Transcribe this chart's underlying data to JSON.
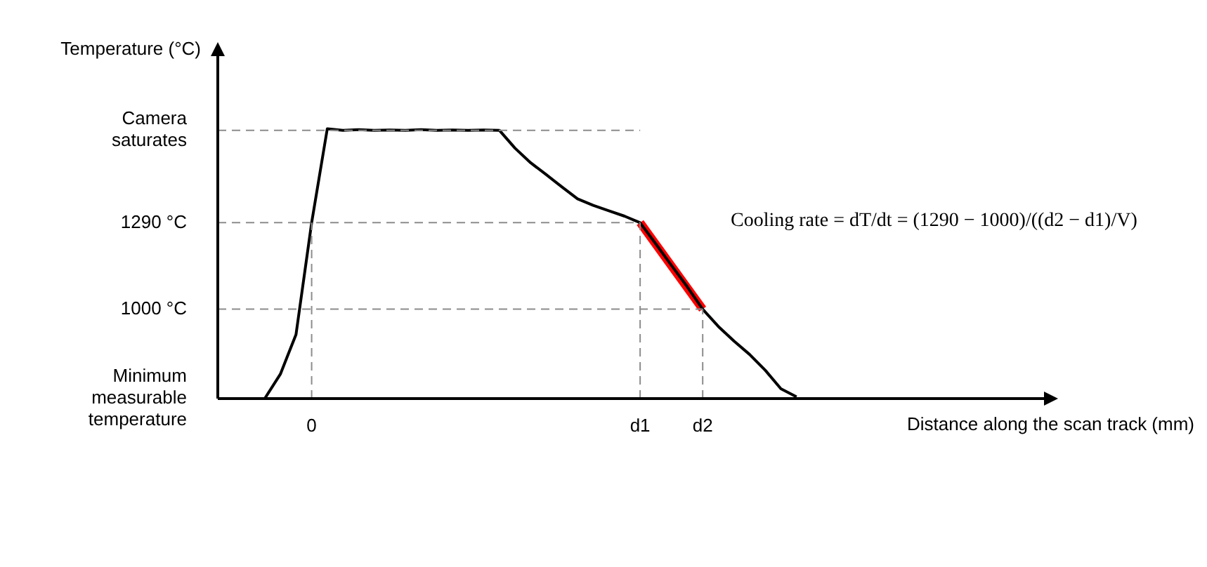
{
  "chart_data": {
    "type": "line",
    "xlabel": "Distance along the scan track (mm)",
    "ylabel": "Temperature (°C)",
    "categories": [
      null,
      null,
      null,
      null,
      null,
      null,
      "0",
      null,
      null,
      null,
      null,
      null,
      null,
      null,
      null,
      null,
      null,
      null,
      null,
      null,
      null,
      null,
      null,
      null,
      null,
      null,
      null,
      "d1",
      null,
      null,
      null,
      "d2",
      null,
      null,
      null,
      null,
      null,
      null,
      null,
      null,
      null,
      null,
      null,
      null,
      null,
      null,
      null,
      null,
      null,
      null,
      null,
      null,
      null,
      null
    ],
    "series": [
      {
        "color": "#000000",
        "values": [
          null,
          null,
          null,
          700,
          782,
          915,
          1290,
          1605,
          1600,
          1602,
          1600,
          1601,
          1600,
          1602,
          1600,
          1601,
          1600,
          1601,
          1600,
          1540,
          1491,
          1451,
          1410,
          1370,
          1348,
          1330,
          1312,
          1290,
          1219,
          1147,
          1076,
          1000,
          942,
          893,
          848,
          795,
          733,
          706,
          null,
          null,
          null,
          null,
          null,
          null,
          null,
          null,
          null,
          null,
          null,
          null,
          null,
          null,
          null,
          null
        ]
      },
      {
        "color": "#ff0000",
        "values": [
          null,
          null,
          null,
          null,
          null,
          null,
          null,
          null,
          null,
          null,
          null,
          null,
          null,
          null,
          null,
          null,
          null,
          null,
          null,
          null,
          null,
          null,
          null,
          null,
          null,
          null,
          null,
          1290,
          null,
          null,
          null,
          1000,
          null,
          null,
          null,
          null,
          null,
          null,
          null,
          null,
          null,
          null,
          null,
          null,
          null,
          null,
          null,
          null,
          null,
          null,
          null,
          null,
          null,
          null
        ]
      }
    ],
    "ylim": [
      700,
      1860
    ],
    "yticks": [
      {
        "value": 700,
        "label": "Minimum\nmeasurable\ntemperature"
      },
      {
        "value": 1000,
        "label": "1000 °C"
      },
      {
        "value": 1290,
        "label": "1290 °C"
      },
      {
        "value": 1600,
        "label": "Camera\nsaturates"
      }
    ],
    "ref_lines": [
      {
        "axis": "y",
        "value": 1600,
        "color": "#8c8c8c",
        "line_style": "dashed"
      },
      {
        "axis": "y",
        "value": 1290,
        "color": "#8c8c8c",
        "line_style": "dashed"
      },
      {
        "axis": "y",
        "value": 1000,
        "color": "#8c8c8c",
        "line_style": "dashed"
      },
      {
        "axis": "x",
        "value": "0",
        "color": "#8c8c8c",
        "line_style": "dashed"
      },
      {
        "axis": "x",
        "value": "d1",
        "color": "#8c8c8c",
        "line_style": "dashed"
      },
      {
        "axis": "x",
        "value": "d2",
        "color": "#8c8c8c",
        "line_style": "dashed"
      }
    ],
    "annotations": [
      "Cooling rate = dT/dt = (1290 − 1000)/((d2 − d1)/V)"
    ],
    "grid": false,
    "legend": false,
    "marker": "none",
    "line_style": "solid"
  }
}
